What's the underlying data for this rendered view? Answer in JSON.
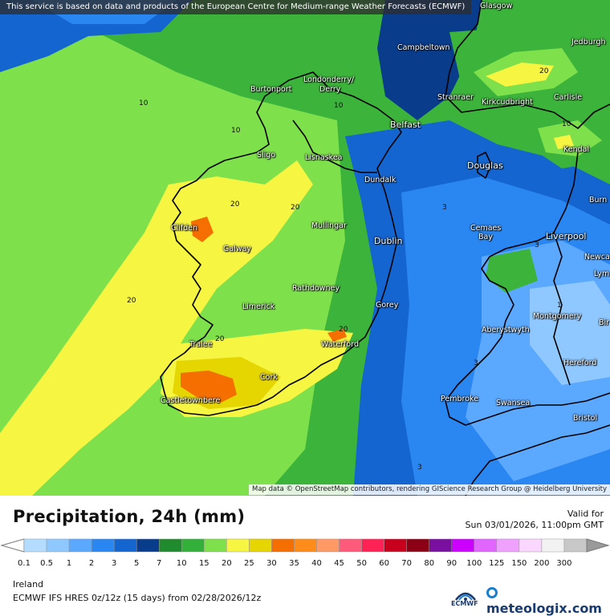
{
  "attribution_top": "This service is based on data and products of the European Centre for Medium-range Weather Forecasts (ECMWF)",
  "attribution_bottom": "Map data © OpenStreetMap contributors, rendering GIScience Research Group @ Heidelberg University",
  "places": [
    {
      "name": "Glasgow"
    },
    {
      "name": "Campbeltown"
    },
    {
      "name": "Jedburgh"
    },
    {
      "name": "Burtonport"
    },
    {
      "name": "Londonderry/"
    },
    {
      "name": "Derry"
    },
    {
      "name": "Stranraer"
    },
    {
      "name": "Kirkcudbright"
    },
    {
      "name": "Carlisle"
    },
    {
      "name": "Belfast"
    },
    {
      "name": "Sligo"
    },
    {
      "name": "Lisnaskea"
    },
    {
      "name": "Kendal"
    },
    {
      "name": "Douglas"
    },
    {
      "name": "Dundalk"
    },
    {
      "name": "Burn"
    },
    {
      "name": "Clifden"
    },
    {
      "name": "Mullingar"
    },
    {
      "name": "Cemaes"
    },
    {
      "name": "Bay"
    },
    {
      "name": "Liverpool"
    },
    {
      "name": "Galway"
    },
    {
      "name": "Dublin"
    },
    {
      "name": "Newca"
    },
    {
      "name": "Lym"
    },
    {
      "name": "Rathdowney"
    },
    {
      "name": "Limerick"
    },
    {
      "name": "Gorey"
    },
    {
      "name": "Montgomery"
    },
    {
      "name": "Bir"
    },
    {
      "name": "Aberystwyth"
    },
    {
      "name": "Tralee"
    },
    {
      "name": "Waterford"
    },
    {
      "name": "Hereford"
    },
    {
      "name": "Cork"
    },
    {
      "name": "Castletownbere"
    },
    {
      "name": "Pembroke"
    },
    {
      "name": "Swansea"
    },
    {
      "name": "Bristol"
    }
  ],
  "contour_labels": [
    "10",
    "10",
    "10",
    "20",
    "20",
    "20",
    "20",
    "20",
    "10",
    "3",
    "3",
    "3",
    "1",
    "3",
    "20"
  ],
  "legend": {
    "title": "Precipitation, 24h (mm)",
    "valid_label": "Valid for",
    "valid_time": "Sun 03/01/2026, 11:00pm GMT",
    "ticks": [
      "0.1",
      "0.5",
      "1",
      "2",
      "3",
      "5",
      "7",
      "10",
      "15",
      "20",
      "25",
      "30",
      "35",
      "40",
      "45",
      "50",
      "60",
      "70",
      "80",
      "90",
      "100",
      "125",
      "150",
      "200",
      "300"
    ],
    "colors": [
      "#b3dcff",
      "#8ec8ff",
      "#5aa8ff",
      "#2a86f0",
      "#1565d1",
      "#0a3c8c",
      "#1f8b2e",
      "#33b03a",
      "#7ee04b",
      "#f5f542",
      "#e5d500",
      "#f56e00",
      "#ff8c1a",
      "#ff9966",
      "#ff5a7a",
      "#ff2255",
      "#c8001e",
      "#8b0014",
      "#7a10a0",
      "#cc00ff",
      "#e066ff",
      "#f0a0ff",
      "#fad7ff",
      "#f2f2f2",
      "#c8c8c8"
    ]
  },
  "region": "Ireland",
  "model_info": "ECMWF IFS HRES 0z/12z (15 days) from  02/28/2026/12z",
  "logos": {
    "ecmwf": "ECMWF",
    "meteologix": "meteologix.com"
  }
}
